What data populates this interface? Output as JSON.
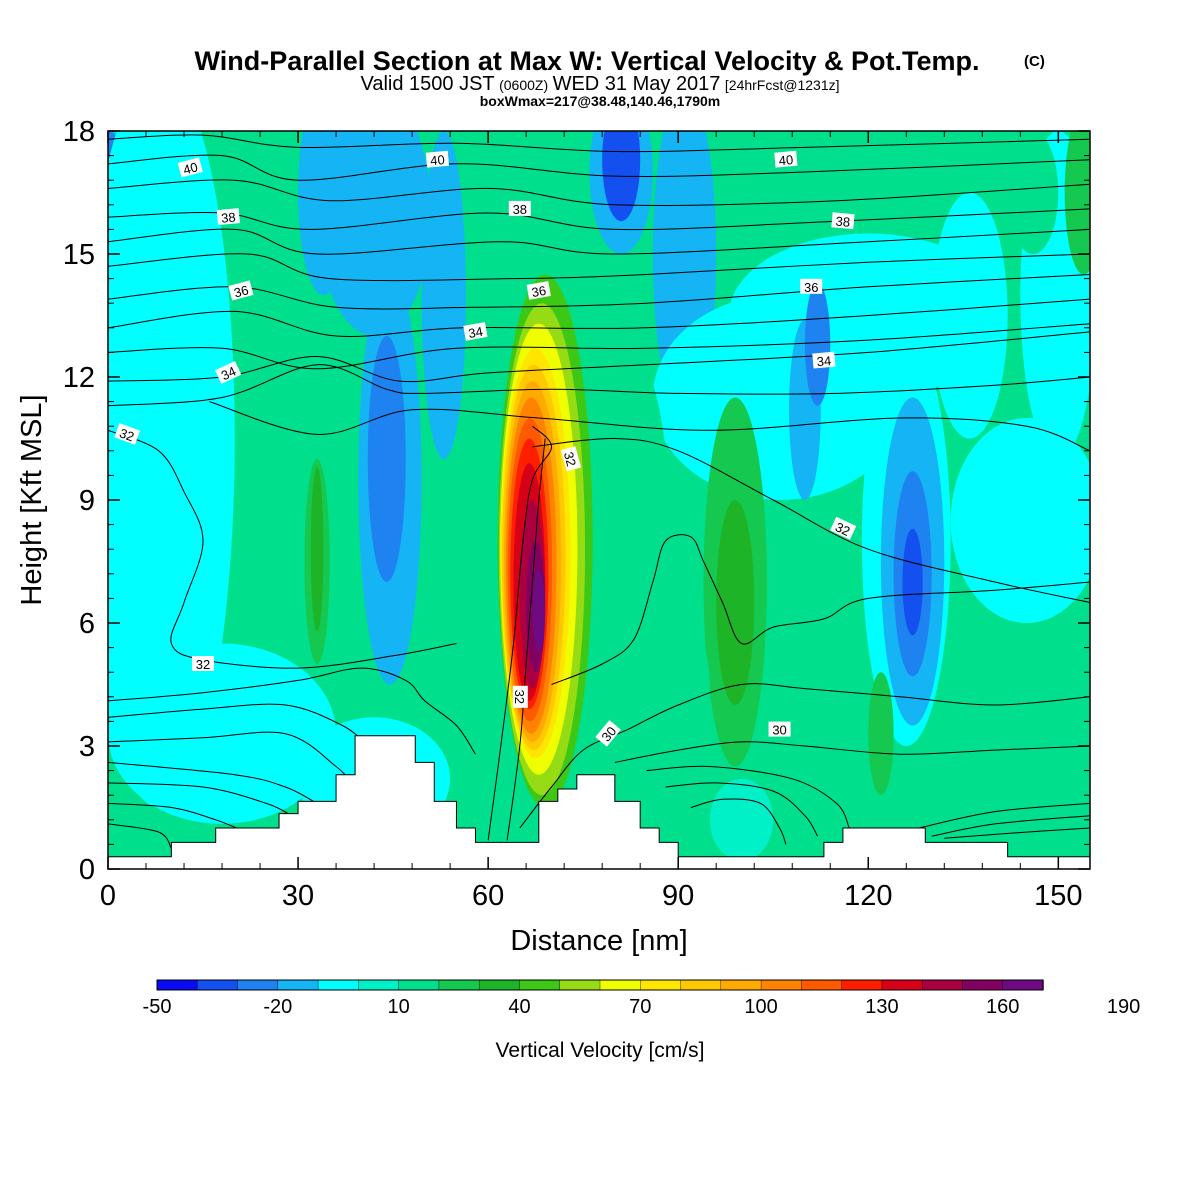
{
  "title": {
    "main": "Wind-Parallel Section at Max W: Vertical Velocity & Pot.Temp.",
    "copyright": "(C)",
    "line2_a": "Valid 1500 JST",
    "line2_b": "(0600Z)",
    "line2_c": "WED 31 May 2017",
    "line2_d": "[24hrFcst@1231z]",
    "line3": "boxWmax=217@38.48,140.46,1790m"
  },
  "chart_data": {
    "type": "heatmap",
    "xlabel": "Distance [nm]",
    "ylabel": "Height [Kft MSL]",
    "xlim": [
      0,
      155
    ],
    "ylim": [
      0,
      18
    ],
    "xticks": [
      "0",
      "30",
      "60",
      "90",
      "120",
      "150"
    ],
    "yticks": [
      "0",
      "3",
      "6",
      "9",
      "12",
      "15",
      "18"
    ],
    "colorbar": {
      "label": "Vertical Velocity [cm/s]",
      "levels": [
        -50,
        -40,
        -30,
        -20,
        -10,
        0,
        10,
        20,
        30,
        40,
        50,
        60,
        70,
        80,
        90,
        100,
        110,
        120,
        130,
        140,
        150,
        160,
        170,
        180,
        190
      ],
      "tick_labels": [
        "-50",
        "-20",
        "10",
        "40",
        "70",
        "100",
        "130",
        "160",
        "190"
      ],
      "colors": [
        "#0a0af5",
        "#1450f0",
        "#1e82f0",
        "#14b4f5",
        "#00ffff",
        "#00f0c8",
        "#00e08c",
        "#14c850",
        "#1eb428",
        "#3cc814",
        "#96dc14",
        "#f0ff00",
        "#ffe600",
        "#ffc800",
        "#ffaa00",
        "#ff8200",
        "#ff5a00",
        "#ff1e00",
        "#d70019",
        "#aa0041",
        "#82005f",
        "#6e0a82"
      ]
    },
    "updraft_max_cm_s": 190,
    "theta_contour_labels": [
      "30",
      "32",
      "34",
      "36",
      "38",
      "40"
    ],
    "terrain_kft": [
      [
        0,
        0.3
      ],
      [
        10,
        0.3
      ],
      [
        10,
        0.65
      ],
      [
        17,
        0.65
      ],
      [
        17,
        1.0
      ],
      [
        27,
        1.0
      ],
      [
        27,
        1.35
      ],
      [
        30,
        1.35
      ],
      [
        30,
        1.65
      ],
      [
        36,
        1.65
      ],
      [
        36,
        2.3
      ],
      [
        39,
        2.3
      ],
      [
        39,
        3.25
      ],
      [
        48.5,
        3.25
      ],
      [
        48.5,
        2.6
      ],
      [
        51.5,
        2.6
      ],
      [
        51.5,
        1.65
      ],
      [
        55,
        1.65
      ],
      [
        55,
        1.0
      ],
      [
        58,
        1.0
      ],
      [
        58,
        0.65
      ],
      [
        68,
        0.65
      ],
      [
        68,
        1.65
      ],
      [
        71,
        1.65
      ],
      [
        71,
        1.95
      ],
      [
        74,
        1.95
      ],
      [
        74,
        2.3
      ],
      [
        80,
        2.3
      ],
      [
        80,
        1.65
      ],
      [
        84,
        1.65
      ],
      [
        84,
        1.0
      ],
      [
        87,
        1.0
      ],
      [
        87,
        0.65
      ],
      [
        90,
        0.65
      ],
      [
        90,
        0.3
      ],
      [
        113,
        0.3
      ],
      [
        113,
        0.65
      ],
      [
        116,
        0.65
      ],
      [
        116,
        1.0
      ],
      [
        129,
        1.0
      ],
      [
        129,
        0.65
      ],
      [
        142,
        0.65
      ],
      [
        142,
        0.3
      ],
      [
        155,
        0.3
      ]
    ]
  }
}
